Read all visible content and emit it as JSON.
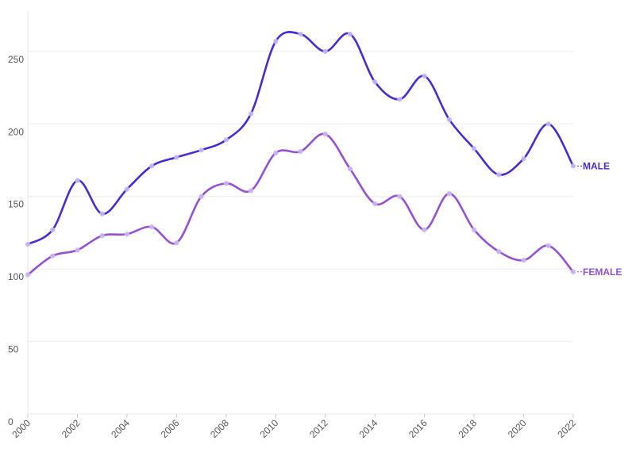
{
  "chart_data": {
    "type": "line",
    "x": [
      2000,
      2001,
      2002,
      2003,
      2004,
      2005,
      2006,
      2007,
      2008,
      2009,
      2010,
      2011,
      2012,
      2013,
      2014,
      2015,
      2016,
      2017,
      2018,
      2019,
      2020,
      2021,
      2022
    ],
    "series": [
      {
        "name": "MALE",
        "color": "#4a2ad4",
        "values": [
          117,
          127,
          161,
          138,
          155,
          171,
          177,
          182,
          189,
          207,
          257,
          262,
          250,
          262,
          229,
          217,
          233,
          203,
          183,
          165,
          176,
          200,
          171
        ]
      },
      {
        "name": "FEMALE",
        "color": "#9650d6",
        "values": [
          96,
          109,
          113,
          123,
          124,
          129,
          118,
          150,
          159,
          154,
          180,
          181,
          193,
          169,
          145,
          150,
          127,
          152,
          127,
          112,
          106,
          116,
          98
        ]
      }
    ],
    "xlabel": "",
    "ylabel": "",
    "ylim": [
      0,
      280
    ],
    "xlim": [
      2000,
      2022
    ],
    "y_ticks": [
      0,
      50,
      100,
      150,
      200,
      250
    ],
    "x_ticks": [
      2000,
      2002,
      2004,
      2006,
      2008,
      2010,
      2012,
      2014,
      2016,
      2018,
      2020,
      2022
    ],
    "grid": true,
    "legend": "inline-right"
  }
}
